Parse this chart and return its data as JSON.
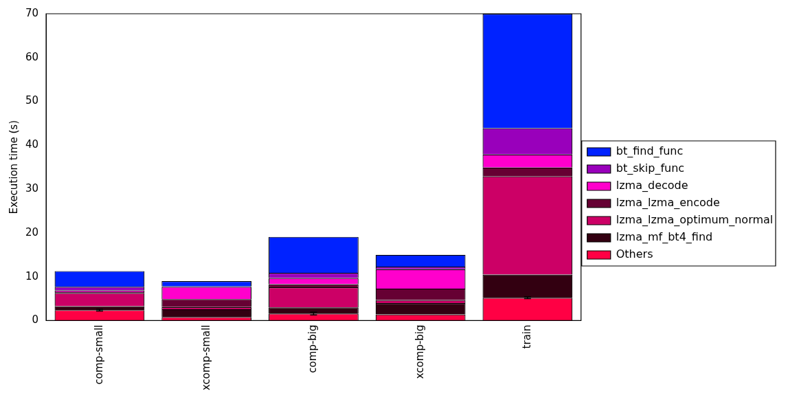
{
  "chart_data": {
    "type": "bar",
    "stacked": true,
    "ylabel": "Execution time (s)",
    "categories": [
      "comp-small",
      "xcomp-small",
      "comp-big",
      "xcomp-big",
      "train"
    ],
    "ylim": [
      0,
      70
    ],
    "yticks": [
      0,
      10,
      20,
      30,
      40,
      50,
      60,
      70
    ],
    "grid": false,
    "legend": "right",
    "series": [
      {
        "name": "Others",
        "color": "#ff0044",
        "values": [
          2.4,
          0.8,
          1.6,
          1.4,
          5.2
        ],
        "errors": [
          0.2,
          null,
          0.3,
          null,
          0.2
        ]
      },
      {
        "name": "lzma_mf_bt4_find",
        "color": "#330011",
        "values": [
          0.9,
          1.8,
          1.4,
          2.6,
          5.3
        ]
      },
      {
        "name": "lzma_lzma_optimum_normal",
        "color": "#cc0066",
        "values": [
          3.0,
          0.5,
          4.6,
          0.7,
          22.4
        ]
      },
      {
        "name": "lzma_lzma_encode",
        "color": "#660033",
        "values": [
          0.2,
          1.8,
          0.7,
          2.6,
          2.0
        ]
      },
      {
        "name": "lzma_decode",
        "color": "#ff00cc",
        "values": [
          0.4,
          2.8,
          1.4,
          4.4,
          3.0
        ]
      },
      {
        "name": "bt_skip_func",
        "color": "#9900bb",
        "values": [
          0.8,
          0.1,
          1.2,
          0.6,
          6.0
        ]
      },
      {
        "name": "bt_find_func",
        "color": "#0022ff",
        "values": [
          3.6,
          1.2,
          8.2,
          2.7,
          26.1
        ]
      }
    ]
  }
}
